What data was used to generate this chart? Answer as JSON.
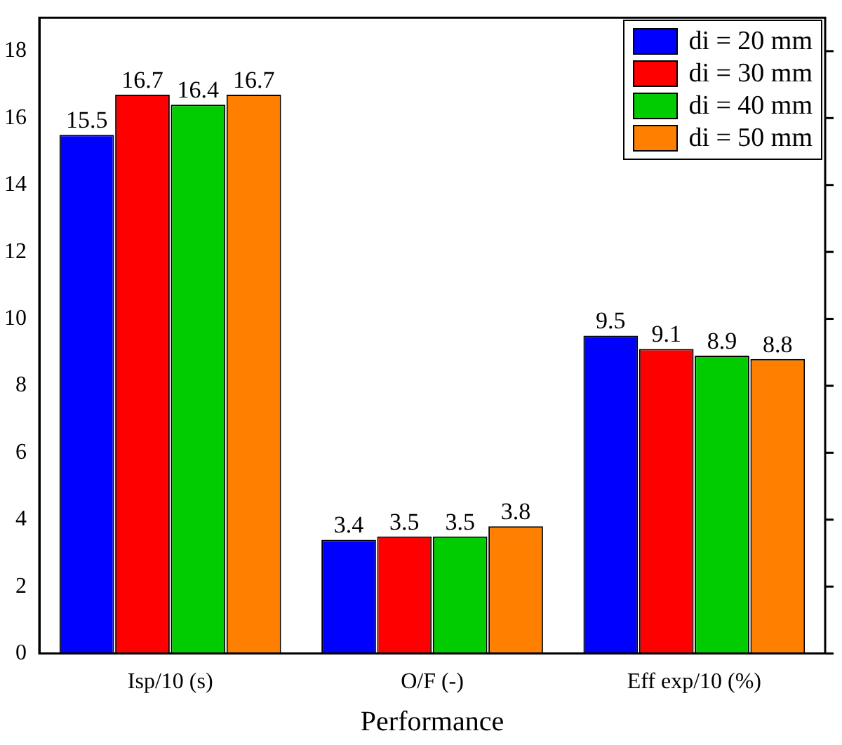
{
  "chart_data": {
    "type": "bar",
    "xlabel": "Performance",
    "categories": [
      "Isp/10 (s)",
      "O/F (-)",
      "Eff exp/10 (%)"
    ],
    "series": [
      {
        "name": "di = 20 mm",
        "color": "#0000ff",
        "values": [
          15.5,
          3.4,
          9.5
        ]
      },
      {
        "name": "di = 30 mm",
        "color": "#ff0000",
        "values": [
          16.7,
          3.5,
          9.1
        ]
      },
      {
        "name": "di = 40 mm",
        "color": "#00cc00",
        "values": [
          16.4,
          3.5,
          8.9
        ]
      },
      {
        "name": "di = 50 mm",
        "color": "#ff8000",
        "values": [
          16.7,
          3.8,
          8.8
        ]
      }
    ],
    "ylim": [
      0,
      19
    ],
    "yticks": [
      0,
      2,
      4,
      6,
      8,
      10,
      12,
      14,
      16,
      18
    ],
    "grid": false,
    "legend": "top right",
    "data_labels": true
  }
}
